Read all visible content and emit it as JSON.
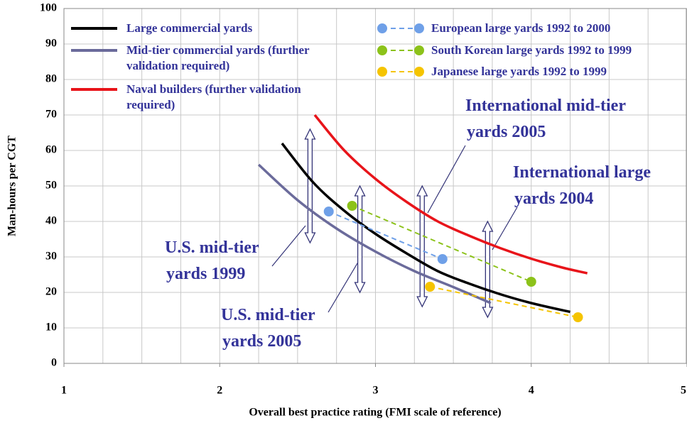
{
  "chart_data": {
    "type": "line",
    "xlabel": "Overall best practice rating (FMI scale of reference)",
    "ylabel": "Man-hours per CGT",
    "xlim": [
      1,
      5
    ],
    "xticks": [
      1,
      2,
      3,
      4,
      5
    ],
    "x_grid_step": 0.25,
    "ylim": [
      0,
      100
    ],
    "yticks": [
      0,
      10,
      20,
      30,
      40,
      50,
      60,
      70,
      80,
      90,
      100
    ],
    "grid": true,
    "series": [
      {
        "name": "Large commercial yards",
        "color": "#000000",
        "style": "solid",
        "x": [
          2.4,
          2.6,
          2.8,
          3.0,
          3.2,
          3.4,
          3.6,
          3.8,
          4.0,
          4.25
        ],
        "values": [
          62,
          51,
          43,
          36.5,
          31,
          26,
          22.5,
          19.5,
          17,
          14.5
        ]
      },
      {
        "name": "Mid-tier commercial yards (further validation required)",
        "color": "#6b6b9b",
        "style": "solid",
        "x": [
          2.25,
          2.5,
          2.75,
          3.0,
          3.25,
          3.5,
          3.74
        ],
        "values": [
          56,
          46,
          38,
          31.5,
          26,
          21.5,
          17
        ]
      },
      {
        "name": "Naval builders (further validation required)",
        "color": "#e8141a",
        "style": "solid",
        "x": [
          2.61,
          2.8,
          3.0,
          3.2,
          3.4,
          3.6,
          3.8,
          4.0,
          4.2,
          4.36
        ],
        "values": [
          70,
          60,
          52,
          45.5,
          40,
          36,
          32.5,
          29.5,
          27,
          25.4
        ]
      },
      {
        "name": "European large yards 1992 to 2000",
        "color": "#6fa0e8",
        "style": "dashed",
        "x": [
          2.7,
          3.43
        ],
        "values": [
          42.8,
          29.4
        ]
      },
      {
        "name": "South Korean large yards 1992 to 1999",
        "color": "#8cc21a",
        "style": "dashed",
        "x": [
          2.85,
          4.0
        ],
        "values": [
          44.4,
          23
        ]
      },
      {
        "name": "Japanese large yards 1992 to 1999",
        "color": "#f5c400",
        "style": "dashed",
        "x": [
          3.35,
          4.3
        ],
        "values": [
          21.6,
          13
        ]
      }
    ],
    "ranges": [
      {
        "x": 2.58,
        "low": 34,
        "high": 66
      },
      {
        "x": 2.9,
        "low": 20,
        "high": 50
      },
      {
        "x": 3.3,
        "low": 16,
        "high": 50
      },
      {
        "x": 3.72,
        "low": 13,
        "high": 40
      }
    ],
    "annotations": [
      {
        "lines": [
          "International mid-tier",
          "yards 2005"
        ]
      },
      {
        "lines": [
          "International large",
          "yards 2004"
        ]
      },
      {
        "lines": [
          "U.S. mid-tier",
          "yards 1999"
        ]
      },
      {
        "lines": [
          "U.S. mid-tier",
          "yards 2005"
        ]
      }
    ]
  }
}
